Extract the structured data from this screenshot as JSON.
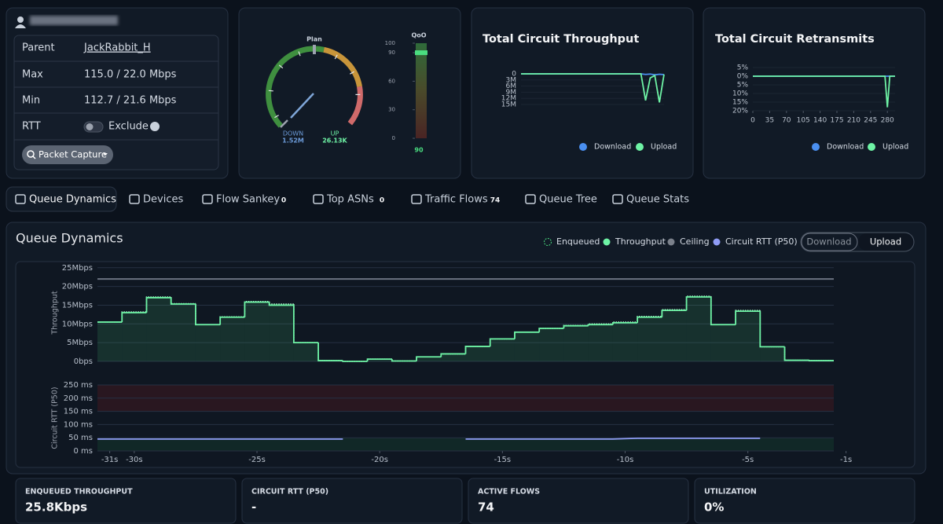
{
  "profile": {
    "rows": [
      {
        "label": "Parent",
        "value": "JackRabbit_H"
      },
      {
        "label": "Max",
        "value": "115.0 / 22.0 Mbps"
      },
      {
        "label": "Min",
        "value": "112.7 / 21.6 Mbps"
      },
      {
        "label": "RTT",
        "value": "Exclude"
      }
    ],
    "button": "Packet Capture"
  },
  "gauge": {
    "plan_label": "Plan",
    "down_label": "DOWN",
    "down_value": "1.52M",
    "up_label": "UP",
    "up_value": "26.13K",
    "qoo": {
      "title": "QoO",
      "ylim": [
        0,
        100
      ],
      "yticks": [
        0,
        30,
        60,
        90,
        100
      ],
      "value": 90
    }
  },
  "tabs": [
    {
      "label": "Queue Dynamics"
    },
    {
      "label": "Devices"
    },
    {
      "label": "Flow Sankey",
      "badge": 0
    },
    {
      "label": "Top ASNs",
      "badge": 0
    },
    {
      "label": "Traffic Flows",
      "badge": 74
    },
    {
      "label": "Queue Tree"
    },
    {
      "label": "Queue Stats"
    }
  ],
  "queue_panel": {
    "title": "Queue Dynamics",
    "buttons": [
      "Download",
      "Upload"
    ]
  },
  "stats": [
    {
      "label": "ENQUEUED THROUGHPUT",
      "value": "25.8Kbps"
    },
    {
      "label": "CIRCUIT RTT (P50)",
      "value": "-"
    },
    {
      "label": "ACTIVE FLOWS",
      "value": 74
    },
    {
      "label": "UTILIZATION",
      "value": "0%"
    }
  ],
  "chart_data": [
    {
      "type": "line",
      "title": "Total Circuit Throughput",
      "y_inverted": true,
      "ylim": [
        0,
        15000000
      ],
      "yticks": [
        0,
        {
          "value": 3000000,
          "label": "3M"
        },
        {
          "value": 6000000,
          "label": "6M"
        },
        {
          "value": 9000000,
          "label": "9M"
        },
        {
          "value": 12000000,
          "label": "12M"
        },
        {
          "value": 15000000,
          "label": "15M"
        }
      ],
      "legend": "bottom",
      "series": [
        {
          "name": "Download",
          "color": "#4a8ff0",
          "values": [
            0,
            0,
            0,
            0,
            0,
            0,
            0,
            0,
            0,
            0,
            0,
            0,
            0,
            0,
            0,
            0,
            0,
            0,
            0,
            0,
            0,
            0,
            0,
            0,
            0,
            0,
            0,
            300000,
            100000,
            500000,
            200000,
            400000
          ]
        },
        {
          "name": "Upload",
          "color": "#6ef3a5",
          "values": [
            0,
            0,
            0,
            0,
            0,
            0,
            0,
            0,
            0,
            0,
            0,
            0,
            0,
            0,
            0,
            0,
            0,
            0,
            0,
            0,
            0,
            0,
            0,
            0,
            0,
            0,
            0,
            13000000,
            2000000,
            800000,
            14000000,
            300000
          ]
        }
      ]
    },
    {
      "type": "line",
      "title": "Total Circuit Retransmits",
      "y_inverted": true,
      "ylim": [
        -5,
        20
      ],
      "yticks": [
        {
          "value": -5,
          "label": "5%"
        },
        {
          "value": 0,
          "label": "0%"
        },
        {
          "value": 5,
          "label": "5%"
        },
        {
          "value": 10,
          "label": "10%"
        },
        {
          "value": 15,
          "label": "15%"
        },
        {
          "value": 20,
          "label": "20%"
        }
      ],
      "xlim": [
        0,
        296
      ],
      "xticks": [
        0,
        35,
        70,
        105,
        140,
        175,
        210,
        245,
        280
      ],
      "x": [
        0,
        35,
        70,
        105,
        140,
        175,
        210,
        245,
        270,
        275,
        280,
        285,
        296
      ],
      "legend": "bottom",
      "series": [
        {
          "name": "Download",
          "color": "#4a8ff0",
          "values": [
            0,
            0,
            0,
            0,
            0,
            0,
            0,
            0,
            0,
            0,
            0,
            0,
            0
          ]
        },
        {
          "name": "Upload",
          "color": "#6ef3a5",
          "values": [
            0,
            0,
            0,
            0,
            0,
            0,
            0,
            0,
            0,
            0,
            18,
            0,
            0
          ]
        }
      ]
    },
    {
      "type": "line",
      "step": true,
      "y_label": "Throughput",
      "xlim": [
        -31.5,
        -1.5
      ],
      "ylim": [
        0,
        26
      ],
      "yticks": [
        {
          "value": 0,
          "label": "0bps"
        },
        {
          "value": 5,
          "label": "5Mbps"
        },
        {
          "value": 10,
          "label": "10Mbps"
        },
        {
          "value": 15,
          "label": "15Mbps"
        },
        {
          "value": 20,
          "label": "20Mbps"
        },
        {
          "value": 25,
          "label": "25Mbps"
        }
      ],
      "x": [
        -31.5,
        -30.5,
        -29.5,
        -28.5,
        -27.5,
        -26.5,
        -25.5,
        -24.5,
        -23.5,
        -22.5,
        -21.5,
        -20.5,
        -19.5,
        -18.5,
        -17.5,
        -16.5,
        -15.5,
        -14.5,
        -13.5,
        -12.5,
        -11.5,
        -10.5,
        -9.5,
        -8.5,
        -7.5,
        -6.5,
        -5.5,
        -4.5,
        -3.5,
        -2.5
      ],
      "series": [
        {
          "name": "Enqueued",
          "color": "#a7f3c8",
          "values": [
            10.5,
            13.2,
            17.2,
            15.4,
            9.8,
            11.9,
            16,
            15.3,
            5,
            0.2,
            0,
            0.6,
            0.1,
            1.2,
            2,
            4,
            6,
            7.8,
            8.8,
            9.6,
            10,
            10.5,
            12,
            13.8,
            17.4,
            9.8,
            13.6,
            3.9,
            0.3,
            0.2
          ]
        },
        {
          "name": "Throughput",
          "color": "#6ef3a5",
          "values": [
            10.5,
            13,
            17,
            15.3,
            9.8,
            11.8,
            15.8,
            15,
            5,
            0.2,
            0,
            0.6,
            0.1,
            1.2,
            2,
            4,
            6,
            7.8,
            8.8,
            9.5,
            9.8,
            10.3,
            11.8,
            13.6,
            17.2,
            9.8,
            13.4,
            3.9,
            0.3,
            0.2
          ]
        },
        {
          "name": "Ceiling",
          "color": "#6b7280",
          "value": 22
        }
      ]
    },
    {
      "type": "line",
      "y_label": "Circuit RTT (P50)",
      "xlim": [
        -31.5,
        -1.5
      ],
      "ylim": [
        0,
        250
      ],
      "yticks": [
        {
          "value": 0,
          "label": "0 ms"
        },
        {
          "value": 50,
          "label": "50 ms"
        },
        {
          "value": 100,
          "label": "100 ms"
        },
        {
          "value": 150,
          "label": "150 ms"
        },
        {
          "value": 200,
          "label": "200 ms"
        },
        {
          "value": 250,
          "label": "250 ms"
        }
      ],
      "xticks": [
        {
          "value": -31,
          "label": "-31s"
        },
        {
          "value": -30,
          "label": "-30s"
        },
        {
          "value": -25,
          "label": "-25s"
        },
        {
          "value": -20,
          "label": "-20s"
        },
        {
          "value": -15,
          "label": "-15s"
        },
        {
          "value": -10,
          "label": "-10s"
        },
        {
          "value": -5,
          "label": "-5s"
        },
        {
          "value": -1,
          "label": "-1s"
        }
      ],
      "x": [
        -31.5,
        -30.5,
        -29.5,
        -28.5,
        -27.5,
        -26.5,
        -25.5,
        -24.5,
        -23.5,
        -22.5,
        -21.5,
        -20.5,
        -19.5,
        -18.5,
        -17.5,
        -16.5,
        -15.5,
        -14.5,
        -13.5,
        -12.5,
        -11.5,
        -10.5,
        -9.5,
        -8.5,
        -7.5,
        -6.5,
        -5.5,
        -4.5,
        -3.5,
        -2.5
      ],
      "series": [
        {
          "name": "Circuit RTT (P50)",
          "color": "#8f9cf5",
          "values": [
            45,
            45,
            45,
            45,
            45,
            45,
            45,
            45,
            45,
            45,
            45,
            null,
            null,
            null,
            null,
            45,
            45,
            45,
            45,
            45,
            45,
            45,
            48,
            48,
            48,
            48,
            48,
            48,
            null,
            null
          ]
        }
      ]
    }
  ]
}
